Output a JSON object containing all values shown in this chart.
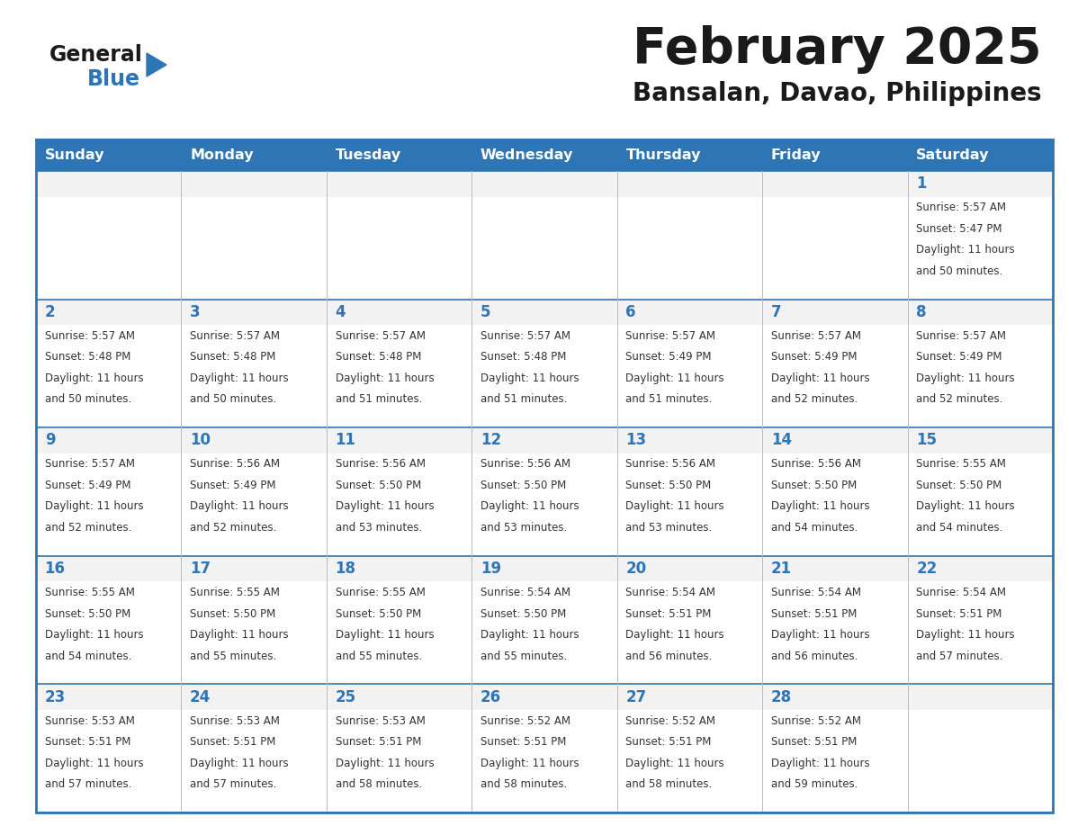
{
  "title": "February 2025",
  "subtitle": "Bansalan, Davao, Philippines",
  "days_of_week": [
    "Sunday",
    "Monday",
    "Tuesday",
    "Wednesday",
    "Thursday",
    "Friday",
    "Saturday"
  ],
  "header_bg_color": "#2E75B6",
  "header_text_color": "#FFFFFF",
  "cell_bg_color": "#FFFFFF",
  "cell_alt_bg_color": "#F2F2F2",
  "border_color": "#2E75B6",
  "row_line_color": "#2E75B6",
  "col_line_color": "#BBBBBB",
  "day_number_color": "#2E75B6",
  "info_text_color": "#333333",
  "title_color": "#1a1a1a",
  "subtitle_color": "#1a1a1a",
  "logo_general_color": "#1a1a1a",
  "logo_blue_color": "#2E75B6",
  "calendar_data": [
    [
      null,
      null,
      null,
      null,
      null,
      null,
      {
        "day": 1,
        "sunrise": "5:57 AM",
        "sunset": "5:47 PM",
        "daylight": "11 hours and 50 minutes"
      }
    ],
    [
      {
        "day": 2,
        "sunrise": "5:57 AM",
        "sunset": "5:48 PM",
        "daylight": "11 hours and 50 minutes"
      },
      {
        "day": 3,
        "sunrise": "5:57 AM",
        "sunset": "5:48 PM",
        "daylight": "11 hours and 50 minutes"
      },
      {
        "day": 4,
        "sunrise": "5:57 AM",
        "sunset": "5:48 PM",
        "daylight": "11 hours and 51 minutes"
      },
      {
        "day": 5,
        "sunrise": "5:57 AM",
        "sunset": "5:48 PM",
        "daylight": "11 hours and 51 minutes"
      },
      {
        "day": 6,
        "sunrise": "5:57 AM",
        "sunset": "5:49 PM",
        "daylight": "11 hours and 51 minutes"
      },
      {
        "day": 7,
        "sunrise": "5:57 AM",
        "sunset": "5:49 PM",
        "daylight": "11 hours and 52 minutes"
      },
      {
        "day": 8,
        "sunrise": "5:57 AM",
        "sunset": "5:49 PM",
        "daylight": "11 hours and 52 minutes"
      }
    ],
    [
      {
        "day": 9,
        "sunrise": "5:57 AM",
        "sunset": "5:49 PM",
        "daylight": "11 hours and 52 minutes"
      },
      {
        "day": 10,
        "sunrise": "5:56 AM",
        "sunset": "5:49 PM",
        "daylight": "11 hours and 52 minutes"
      },
      {
        "day": 11,
        "sunrise": "5:56 AM",
        "sunset": "5:50 PM",
        "daylight": "11 hours and 53 minutes"
      },
      {
        "day": 12,
        "sunrise": "5:56 AM",
        "sunset": "5:50 PM",
        "daylight": "11 hours and 53 minutes"
      },
      {
        "day": 13,
        "sunrise": "5:56 AM",
        "sunset": "5:50 PM",
        "daylight": "11 hours and 53 minutes"
      },
      {
        "day": 14,
        "sunrise": "5:56 AM",
        "sunset": "5:50 PM",
        "daylight": "11 hours and 54 minutes"
      },
      {
        "day": 15,
        "sunrise": "5:55 AM",
        "sunset": "5:50 PM",
        "daylight": "11 hours and 54 minutes"
      }
    ],
    [
      {
        "day": 16,
        "sunrise": "5:55 AM",
        "sunset": "5:50 PM",
        "daylight": "11 hours and 54 minutes"
      },
      {
        "day": 17,
        "sunrise": "5:55 AM",
        "sunset": "5:50 PM",
        "daylight": "11 hours and 55 minutes"
      },
      {
        "day": 18,
        "sunrise": "5:55 AM",
        "sunset": "5:50 PM",
        "daylight": "11 hours and 55 minutes"
      },
      {
        "day": 19,
        "sunrise": "5:54 AM",
        "sunset": "5:50 PM",
        "daylight": "11 hours and 55 minutes"
      },
      {
        "day": 20,
        "sunrise": "5:54 AM",
        "sunset": "5:51 PM",
        "daylight": "11 hours and 56 minutes"
      },
      {
        "day": 21,
        "sunrise": "5:54 AM",
        "sunset": "5:51 PM",
        "daylight": "11 hours and 56 minutes"
      },
      {
        "day": 22,
        "sunrise": "5:54 AM",
        "sunset": "5:51 PM",
        "daylight": "11 hours and 57 minutes"
      }
    ],
    [
      {
        "day": 23,
        "sunrise": "5:53 AM",
        "sunset": "5:51 PM",
        "daylight": "11 hours and 57 minutes"
      },
      {
        "day": 24,
        "sunrise": "5:53 AM",
        "sunset": "5:51 PM",
        "daylight": "11 hours and 57 minutes"
      },
      {
        "day": 25,
        "sunrise": "5:53 AM",
        "sunset": "5:51 PM",
        "daylight": "11 hours and 58 minutes"
      },
      {
        "day": 26,
        "sunrise": "5:52 AM",
        "sunset": "5:51 PM",
        "daylight": "11 hours and 58 minutes"
      },
      {
        "day": 27,
        "sunrise": "5:52 AM",
        "sunset": "5:51 PM",
        "daylight": "11 hours and 58 minutes"
      },
      {
        "day": 28,
        "sunrise": "5:52 AM",
        "sunset": "5:51 PM",
        "daylight": "11 hours and 59 minutes"
      },
      null
    ]
  ]
}
